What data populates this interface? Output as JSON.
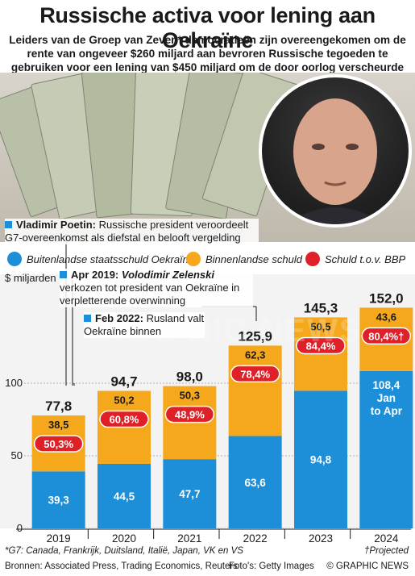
{
  "title": "Russische activa voor lening aan Oekraïne",
  "subtitle": "Leiders van de Groep van Zeven* democratieën zijn overeengekomen om de rente van ongeveer $260 miljard aan bevroren Russische tegoeden te gebruiken voor een lening van $450 miljard om de door oorlog verscheurde Oekraïense economie te helpen",
  "annotations": {
    "putin_name": "Vladimir Poetin:",
    "putin_text": " Russische president veroordeelt G7-overeenkomst als diefstal en belooft vergelding",
    "apr2019_date": "Apr 2019: ",
    "apr2019_name": "Volodimir Zelenski",
    "apr2019_text": "verkozen tot president van Oekraïne in verpletterende overwinning",
    "feb2022_date": "Feb 2022:",
    "feb2022_text": " Rusland valt Oekraïne binnen"
  },
  "colors": {
    "external": "#1d8fd8",
    "domestic": "#f5a81c",
    "ratio": "#e02028",
    "background": "#ffffff"
  },
  "chart_data": {
    "type": "bar",
    "stacked": true,
    "categories": [
      "2019",
      "2020",
      "2021",
      "2022",
      "2023",
      "2024"
    ],
    "series": [
      {
        "name": "Buitenlandse staatsschuld Oekraïne",
        "values": [
          39.3,
          44.5,
          47.7,
          63.6,
          94.8,
          108.4
        ]
      },
      {
        "name": "Binnenlandse schuld",
        "values": [
          38.5,
          50.2,
          50.3,
          62.3,
          50.5,
          43.6
        ]
      }
    ],
    "totals": [
      "77,8",
      "94,7",
      "98,0",
      "125,9",
      "145,3",
      "152,0"
    ],
    "external_labels": [
      "39,3",
      "44,5",
      "47,7",
      "63,6",
      "94,8",
      "108,4"
    ],
    "domestic_labels": [
      "38,5",
      "50,2",
      "50,3",
      "62,3",
      "50,5",
      "43,6"
    ],
    "ratio_series_name": "Schuld t.o.v. BBP",
    "ratio_labels": [
      "50,3%",
      "60,8%",
      "48,9%",
      "78,4%",
      "84,4%",
      "80,4%†"
    ],
    "ylabel": "$ miljarden",
    "yticks": [
      0,
      50,
      100
    ],
    "ylim": [
      0,
      160
    ],
    "bar_2024_extra": [
      "Jan",
      "to Apr"
    ]
  },
  "footnote": "*G7: Canada, Frankrijk, Duitsland, Italië, Japan, VK en VS",
  "projected": "†Projected",
  "sources": "Bronnen: Associated Press, Trading Economics, Reuters",
  "photo_credit": "Foto's: Getty Images",
  "brand": "© GRAPHIC NEWS",
  "watermark": "GRAPHIC NEWS"
}
